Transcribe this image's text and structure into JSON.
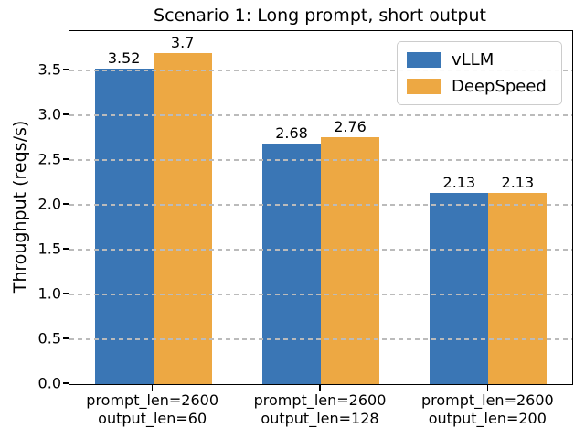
{
  "chart_data": {
    "type": "bar",
    "title": "Scenario 1: Long prompt, short output",
    "xlabel": "",
    "ylabel": "Throughput (reqs/s)",
    "categories": [
      [
        "prompt_len=2600",
        "output_len=60"
      ],
      [
        "prompt_len=2600",
        "output_len=128"
      ],
      [
        "prompt_len=2600",
        "output_len=200"
      ]
    ],
    "series": [
      {
        "name": "vLLM",
        "color": "#3a76b5",
        "values": [
          3.52,
          2.68,
          2.13
        ],
        "labels": [
          "3.52",
          "2.68",
          "2.13"
        ]
      },
      {
        "name": "DeepSpeed",
        "color": "#eda843",
        "values": [
          3.7,
          2.76,
          2.13
        ],
        "labels": [
          "3.7",
          "2.76",
          "2.13"
        ]
      }
    ],
    "ytick_labels": [
      "0.0",
      "0.5",
      "1.0",
      "1.5",
      "2.0",
      "2.5",
      "3.0",
      "3.5"
    ],
    "ylim": [
      0,
      3.94
    ],
    "grid": "horizontal-dashed-above-bars",
    "grid_color": "#bbbbbb",
    "spine_color": "#000000",
    "legend_position": "upper-right",
    "bar_value_labels": true
  }
}
